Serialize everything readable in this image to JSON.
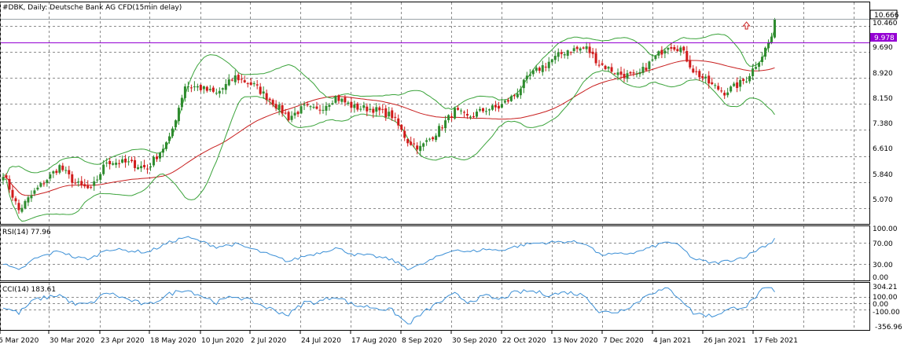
{
  "window": {
    "title": "#DBK, Daily:  Deutsche Bank AG CFD(15min delay)"
  },
  "colors": {
    "bull": "#2e8b2e",
    "bear": "#d01a1a",
    "bollinger": "#3aa33a",
    "ma": "#c81e1e",
    "level": "#9400d3",
    "indicator": "#3b8fd6",
    "arrow": "#c81e1e",
    "frame": "#000000",
    "grid": "#8c8c8c"
  },
  "icons": {
    "signal_arrow": "up-arrow-icon"
  },
  "price_panel": {
    "y_ticks": [
      "10.460",
      "9.690",
      "8.920",
      "8.150",
      "7.380",
      "6.610",
      "5.840",
      "5.070"
    ],
    "last_price_label": "10.666",
    "level_label": "9.978"
  },
  "rsi_panel": {
    "label": "RSI(14) 77.96",
    "y_ticks": [
      "100.00",
      "70.00",
      "30.00",
      "0.00"
    ]
  },
  "cci_panel": {
    "label": "CCI(14) 183.61",
    "y_ticks": [
      "304.21",
      "100.00",
      "0.00",
      "-100.00",
      "-356.96"
    ]
  },
  "x_axis": {
    "dates": [
      "6 Mar 2020",
      "30 Mar 2020",
      "23 Apr 2020",
      "18 May 2020",
      "10 Jun 2020",
      "2 Jul 2020",
      "24 Jul 2020",
      "17 Aug 2020",
      "8 Sep 2020",
      "30 Sep 2020",
      "22 Oct 2020",
      "13 Nov 2020",
      "7 Dec 2020",
      "4 Jan 2021",
      "26 Jan 2021",
      "17 Feb 2021"
    ]
  },
  "chart_data": {
    "type": "candlestick",
    "title": "#DBK, Daily:  Deutsche Bank AG CFD(15min delay)",
    "price_range": [
      4.6,
      11.16
    ],
    "horizontal_level": 9.978,
    "last_price": 10.666,
    "anchors": [
      [
        0,
        6.1
      ],
      [
        5,
        5.0
      ],
      [
        10,
        5.55
      ],
      [
        18,
        6.3
      ],
      [
        23,
        5.8
      ],
      [
        28,
        5.6
      ],
      [
        33,
        6.45
      ],
      [
        40,
        6.4
      ],
      [
        46,
        6.25
      ],
      [
        53,
        7.1
      ],
      [
        58,
        8.7
      ],
      [
        62,
        8.65
      ],
      [
        68,
        8.45
      ],
      [
        74,
        8.95
      ],
      [
        80,
        8.7
      ],
      [
        86,
        8.2
      ],
      [
        91,
        7.75
      ],
      [
        96,
        8.05
      ],
      [
        100,
        7.95
      ],
      [
        106,
        8.35
      ],
      [
        112,
        8.05
      ],
      [
        118,
        8.0
      ],
      [
        124,
        7.8
      ],
      [
        129,
        7.05
      ],
      [
        133,
        6.85
      ],
      [
        138,
        7.3
      ],
      [
        144,
        7.95
      ],
      [
        148,
        7.75
      ],
      [
        154,
        8.0
      ],
      [
        158,
        8.05
      ],
      [
        163,
        8.4
      ],
      [
        168,
        9.0
      ],
      [
        174,
        9.4
      ],
      [
        180,
        9.75
      ],
      [
        186,
        9.8
      ],
      [
        190,
        9.35
      ],
      [
        196,
        9.05
      ],
      [
        202,
        8.95
      ],
      [
        206,
        9.35
      ],
      [
        212,
        9.9
      ],
      [
        216,
        9.8
      ],
      [
        220,
        9.15
      ],
      [
        226,
        8.7
      ],
      [
        230,
        8.5
      ],
      [
        234,
        8.7
      ],
      [
        237,
        8.9
      ],
      [
        242,
        9.6
      ],
      [
        245,
        10.15
      ],
      [
        246,
        10.666
      ]
    ],
    "rsi": {
      "range": [
        0,
        100
      ],
      "levels": [
        70,
        30
      ],
      "last": 77.96,
      "anchors": [
        [
          0,
          30
        ],
        [
          5,
          18
        ],
        [
          10,
          40
        ],
        [
          18,
          55
        ],
        [
          23,
          42
        ],
        [
          28,
          40
        ],
        [
          33,
          58
        ],
        [
          40,
          55
        ],
        [
          46,
          52
        ],
        [
          53,
          70
        ],
        [
          58,
          80
        ],
        [
          62,
          74
        ],
        [
          68,
          62
        ],
        [
          74,
          67
        ],
        [
          80,
          57
        ],
        [
          86,
          45
        ],
        [
          91,
          35
        ],
        [
          96,
          45
        ],
        [
          100,
          50
        ],
        [
          106,
          60
        ],
        [
          112,
          48
        ],
        [
          118,
          45
        ],
        [
          124,
          38
        ],
        [
          129,
          22
        ],
        [
          133,
          28
        ],
        [
          138,
          42
        ],
        [
          144,
          58
        ],
        [
          148,
          52
        ],
        [
          154,
          58
        ],
        [
          158,
          55
        ],
        [
          163,
          62
        ],
        [
          168,
          68
        ],
        [
          174,
          70
        ],
        [
          180,
          72
        ],
        [
          186,
          68
        ],
        [
          190,
          48
        ],
        [
          196,
          48
        ],
        [
          202,
          52
        ],
        [
          206,
          60
        ],
        [
          212,
          72
        ],
        [
          216,
          62
        ],
        [
          220,
          40
        ],
        [
          226,
          32
        ],
        [
          230,
          35
        ],
        [
          234,
          40
        ],
        [
          237,
          45
        ],
        [
          242,
          62
        ],
        [
          245,
          70
        ],
        [
          246,
          77.96
        ]
      ]
    },
    "cci": {
      "range": [
        -420,
        330
      ],
      "levels": [
        100,
        0,
        -100
      ],
      "last": 183.61,
      "anchors": [
        [
          0,
          -60
        ],
        [
          5,
          -150
        ],
        [
          10,
          60
        ],
        [
          18,
          140
        ],
        [
          23,
          -20
        ],
        [
          28,
          0
        ],
        [
          33,
          180
        ],
        [
          40,
          60
        ],
        [
          46,
          -30
        ],
        [
          53,
          150
        ],
        [
          58,
          230
        ],
        [
          62,
          150
        ],
        [
          68,
          20
        ],
        [
          74,
          120
        ],
        [
          80,
          20
        ],
        [
          86,
          -100
        ],
        [
          91,
          -180
        ],
        [
          96,
          20
        ],
        [
          100,
          20
        ],
        [
          106,
          120
        ],
        [
          112,
          -30
        ],
        [
          118,
          -60
        ],
        [
          124,
          -110
        ],
        [
          129,
          -330
        ],
        [
          133,
          -180
        ],
        [
          138,
          -10
        ],
        [
          144,
          150
        ],
        [
          148,
          30
        ],
        [
          154,
          120
        ],
        [
          158,
          60
        ],
        [
          163,
          170
        ],
        [
          168,
          200
        ],
        [
          174,
          140
        ],
        [
          180,
          180
        ],
        [
          186,
          120
        ],
        [
          190,
          -140
        ],
        [
          196,
          -130
        ],
        [
          202,
          10
        ],
        [
          206,
          170
        ],
        [
          212,
          230
        ],
        [
          216,
          80
        ],
        [
          220,
          -150
        ],
        [
          226,
          -200
        ],
        [
          230,
          -120
        ],
        [
          234,
          -60
        ],
        [
          237,
          -40
        ],
        [
          242,
          210
        ],
        [
          245,
          240
        ],
        [
          246,
          183.61
        ]
      ]
    }
  }
}
